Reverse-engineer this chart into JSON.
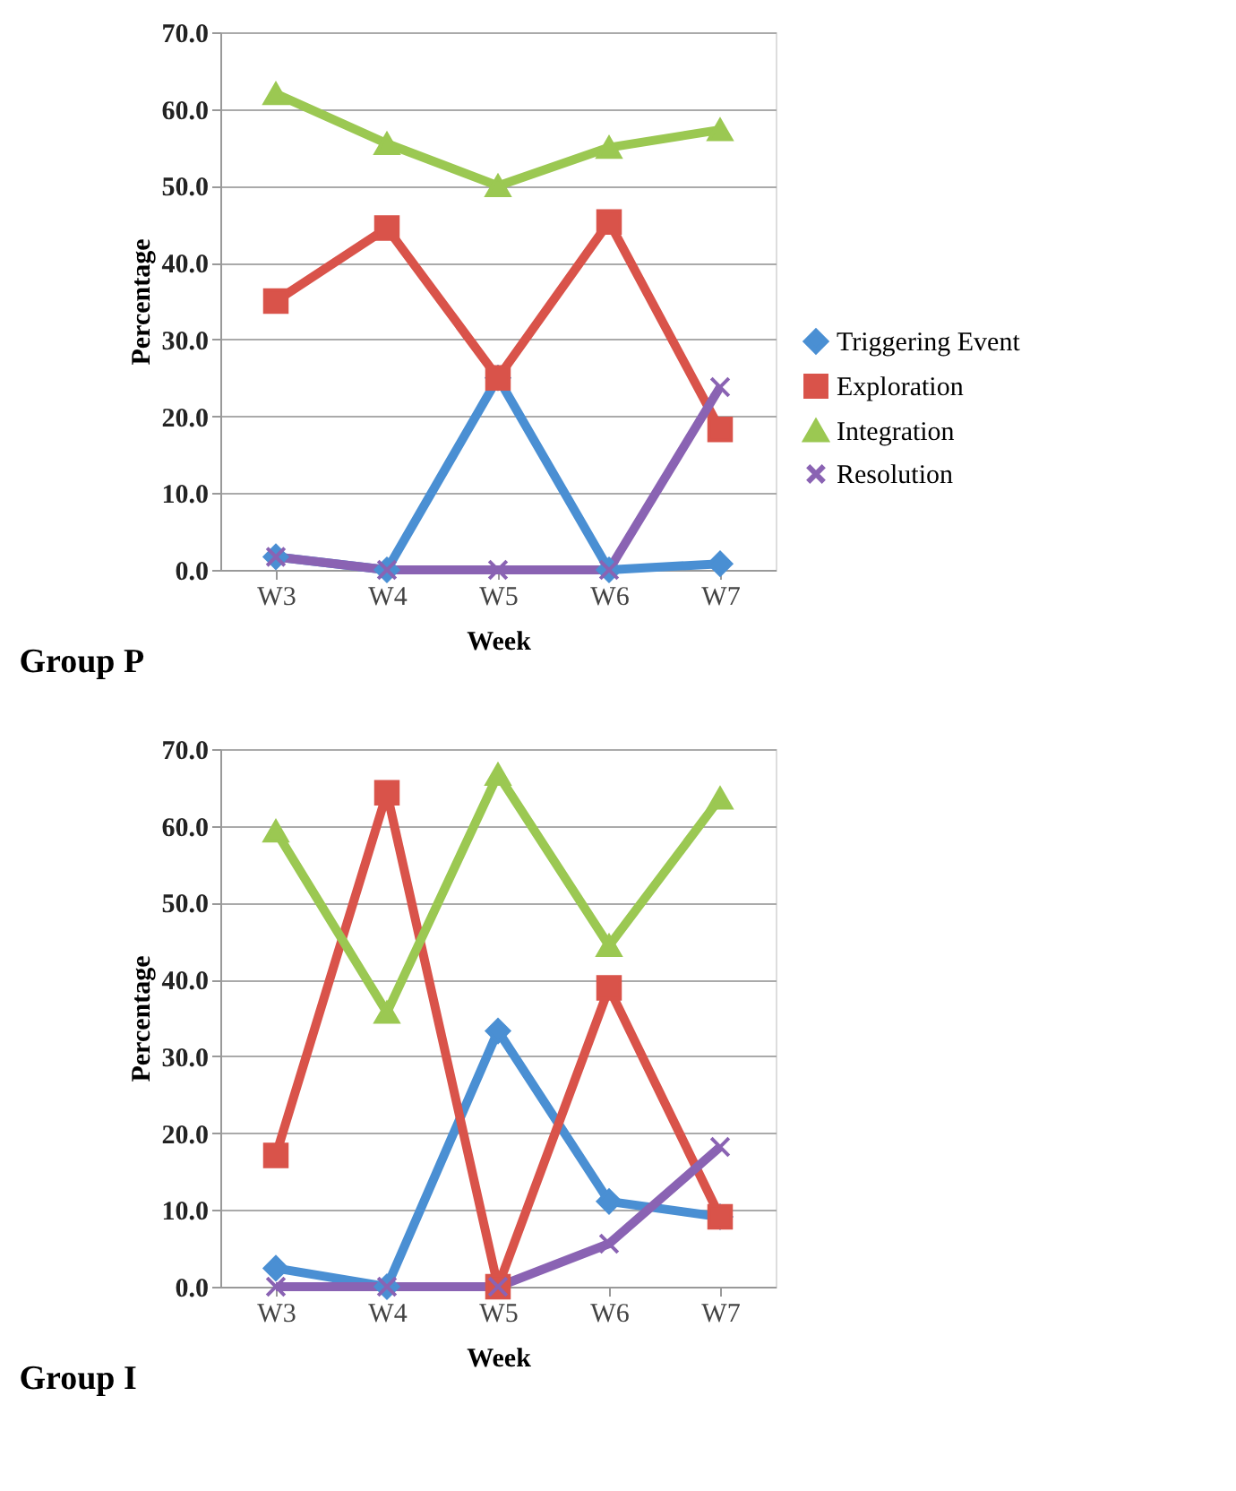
{
  "chart_data": [
    {
      "type": "line",
      "title": "Group P",
      "xlabel": "Week",
      "ylabel": "Percentage",
      "categories": [
        "W3",
        "W4",
        "W5",
        "W6",
        "W7"
      ],
      "ylim": [
        0,
        70
      ],
      "yticks": [
        {
          "value": 0,
          "label": "0.0"
        },
        {
          "value": 10,
          "label": "10.0"
        },
        {
          "value": 20,
          "label": "20.0"
        },
        {
          "value": 30,
          "label": "30.0"
        },
        {
          "value": 40,
          "label": "40.0"
        },
        {
          "value": 50,
          "label": "50.0"
        },
        {
          "value": 60,
          "label": "60.0"
        },
        {
          "value": 70,
          "label": "70.0"
        }
      ],
      "grid": "y",
      "legend": "right",
      "series": [
        {
          "name": "Triggering Event",
          "color": "#4a8fd3",
          "marker": "diamond",
          "values": [
            1.7,
            0,
            25,
            0,
            0.8
          ]
        },
        {
          "name": "Exploration",
          "color": "#d9534a",
          "marker": "square",
          "values": [
            35,
            44.5,
            25,
            45.3,
            18.3
          ]
        },
        {
          "name": "Integration",
          "color": "#9bc852",
          "marker": "triangle",
          "values": [
            62,
            55.5,
            50,
            55,
            57.3
          ]
        },
        {
          "name": "Resolution",
          "color": "#8a63b3",
          "marker": "cross",
          "values": [
            1.7,
            0,
            0,
            0,
            23.8
          ]
        }
      ]
    },
    {
      "type": "line",
      "title": "Group I",
      "xlabel": "Week",
      "ylabel": "Percentage",
      "categories": [
        "W3",
        "W4",
        "W5",
        "W6",
        "W7"
      ],
      "ylim": [
        0,
        70
      ],
      "yticks": [
        {
          "value": 0,
          "label": "0.0"
        },
        {
          "value": 10,
          "label": "10.0"
        },
        {
          "value": 20,
          "label": "20.0"
        },
        {
          "value": 30,
          "label": "30.0"
        },
        {
          "value": 40,
          "label": "40.0"
        },
        {
          "value": 50,
          "label": "50.0"
        },
        {
          "value": 60,
          "label": "60.0"
        },
        {
          "value": 70,
          "label": "70.0"
        }
      ],
      "grid": "y",
      "legend": "right",
      "series": [
        {
          "name": "Triggering Event",
          "color": "#4a8fd3",
          "marker": "diamond",
          "values": [
            2.4,
            0,
            33.3,
            11.1,
            9.1
          ]
        },
        {
          "name": "Exploration",
          "color": "#d9534a",
          "marker": "square",
          "values": [
            17.1,
            64.3,
            0,
            38.9,
            9.1
          ]
        },
        {
          "name": "Integration",
          "color": "#9bc852",
          "marker": "triangle",
          "values": [
            59.3,
            35.7,
            66.7,
            44.4,
            63.6
          ]
        },
        {
          "name": "Resolution",
          "color": "#8a63b3",
          "marker": "cross",
          "values": [
            0,
            0,
            0,
            5.6,
            18.2
          ]
        }
      ]
    }
  ]
}
